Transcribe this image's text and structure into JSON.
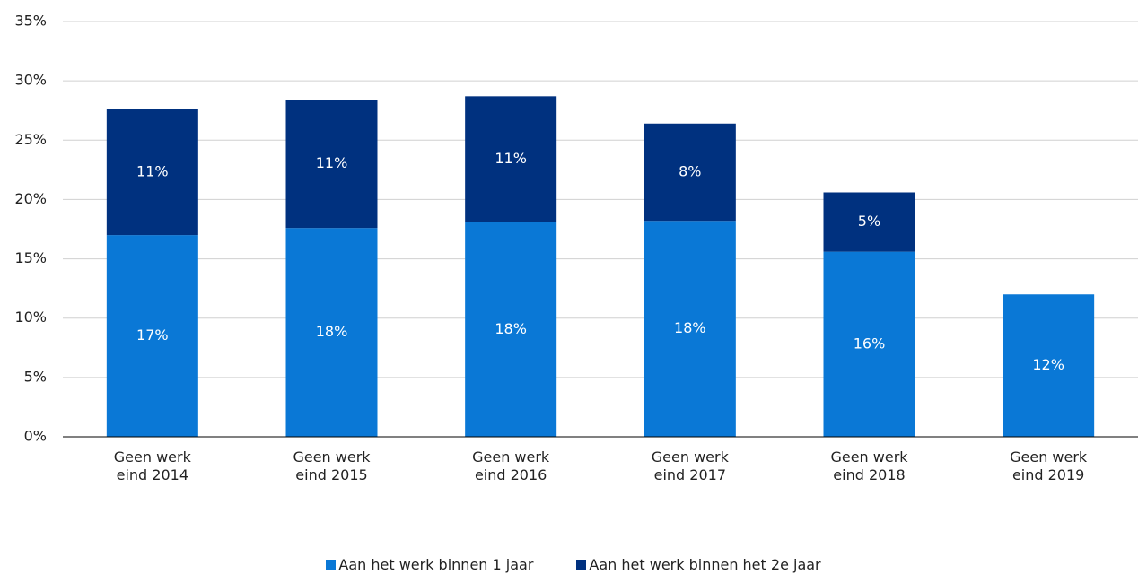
{
  "chart_data": {
    "type": "stacked_bar",
    "categories": [
      "Geen werk eind 2014",
      "Geen werk eind 2015",
      "Geen werk eind 2016",
      "Geen werk eind 2017",
      "Geen werk eind 2018",
      "Geen werk eind 2019"
    ],
    "series": [
      {
        "name": "Aan het werk binnen 1 jaar",
        "color": "#0a78d6",
        "values": [
          17.0,
          17.6,
          18.1,
          18.2,
          15.6,
          12.0
        ],
        "value_labels": [
          "17%",
          "18%",
          "18%",
          "18%",
          "16%",
          "12%"
        ]
      },
      {
        "name": "Aan het werk binnen het 2e jaar",
        "color": "#00317f",
        "values": [
          10.6,
          10.8,
          10.6,
          8.2,
          5.0,
          null
        ],
        "value_labels": [
          "11%",
          "11%",
          "11%",
          "8%",
          "5%",
          null
        ]
      }
    ],
    "ylim": [
      0,
      35
    ],
    "yticks": [
      {
        "value": 0,
        "label": "0%"
      },
      {
        "value": 5,
        "label": "5%"
      },
      {
        "value": 10,
        "label": "10%"
      },
      {
        "value": 15,
        "label": "15%"
      },
      {
        "value": 20,
        "label": "20%"
      },
      {
        "value": 25,
        "label": "25%"
      },
      {
        "value": 30,
        "label": "30%"
      },
      {
        "value": 35,
        "label": "35%"
      }
    ],
    "grid": true,
    "legend": "bottom"
  }
}
